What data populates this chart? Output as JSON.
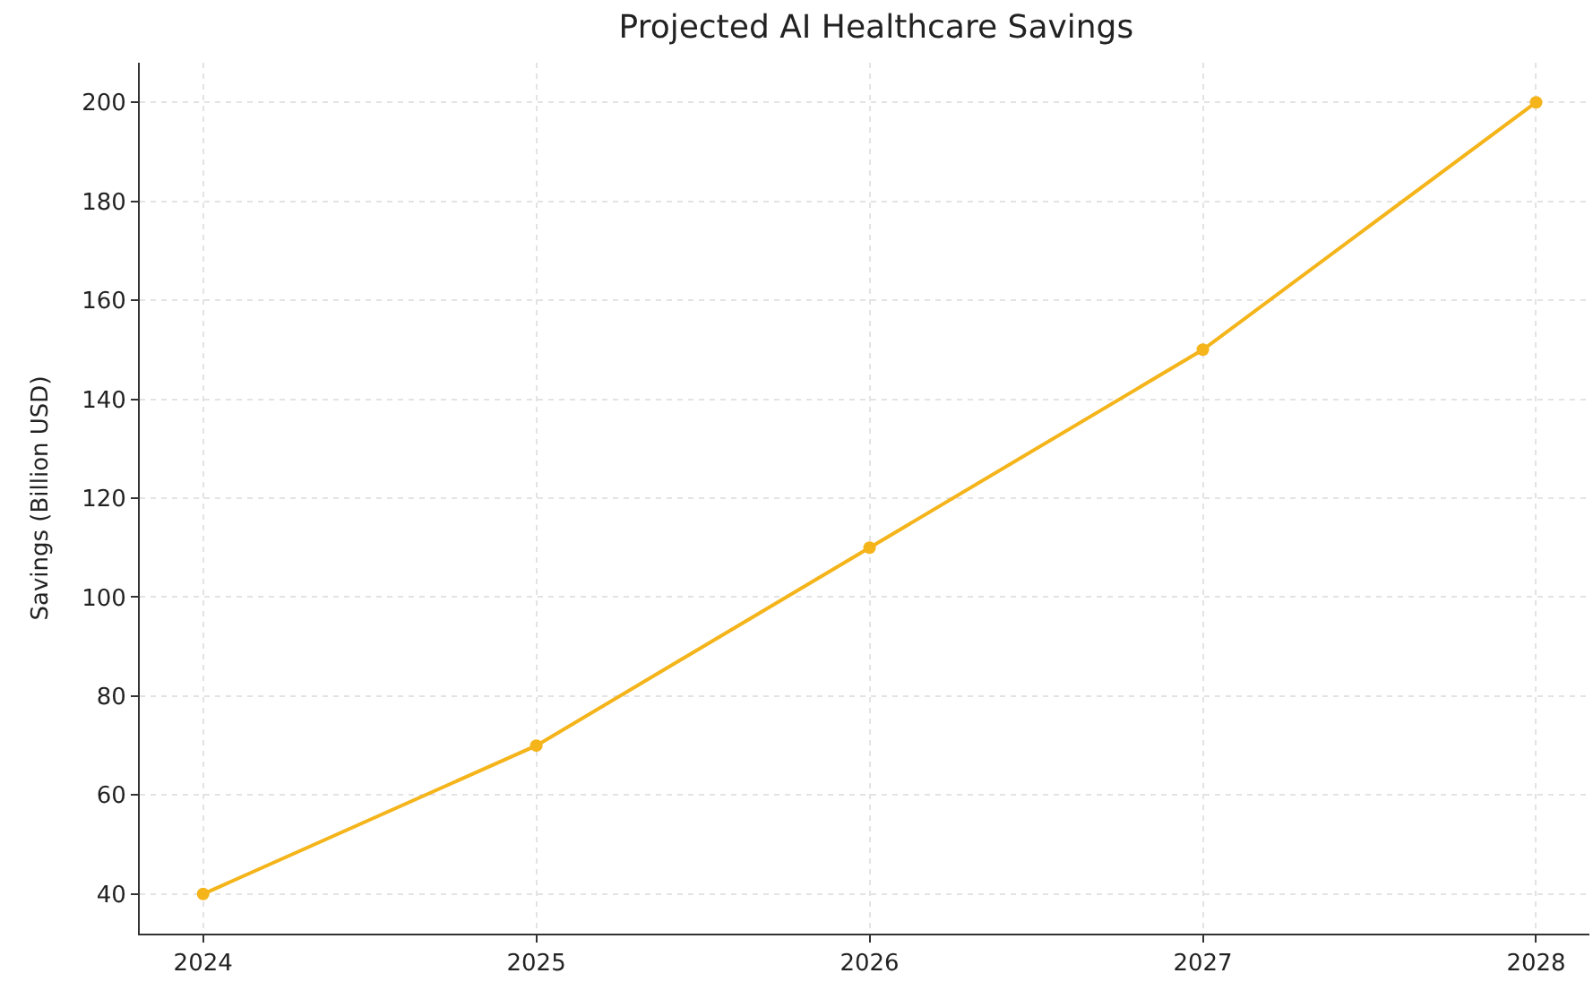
{
  "chart_data": {
    "type": "line",
    "title": "Projected AI Healthcare Savings",
    "ylabel": "Savings (Billion USD)",
    "x": [
      2024,
      2025,
      2026,
      2027,
      2028
    ],
    "series": [
      {
        "color": "#f4b41a",
        "values": [
          40,
          70,
          110,
          150,
          200
        ]
      }
    ],
    "xlim": [
      2023.81,
      2028.16
    ],
    "xticks": [
      2024,
      2025,
      2026,
      2027,
      2028
    ],
    "ylim": [
      32,
      208
    ],
    "yticks": [
      40,
      60,
      80,
      100,
      120,
      140,
      160,
      180,
      200
    ],
    "grid": true,
    "marker": "circle",
    "line_style": "solid",
    "legend": false
  }
}
